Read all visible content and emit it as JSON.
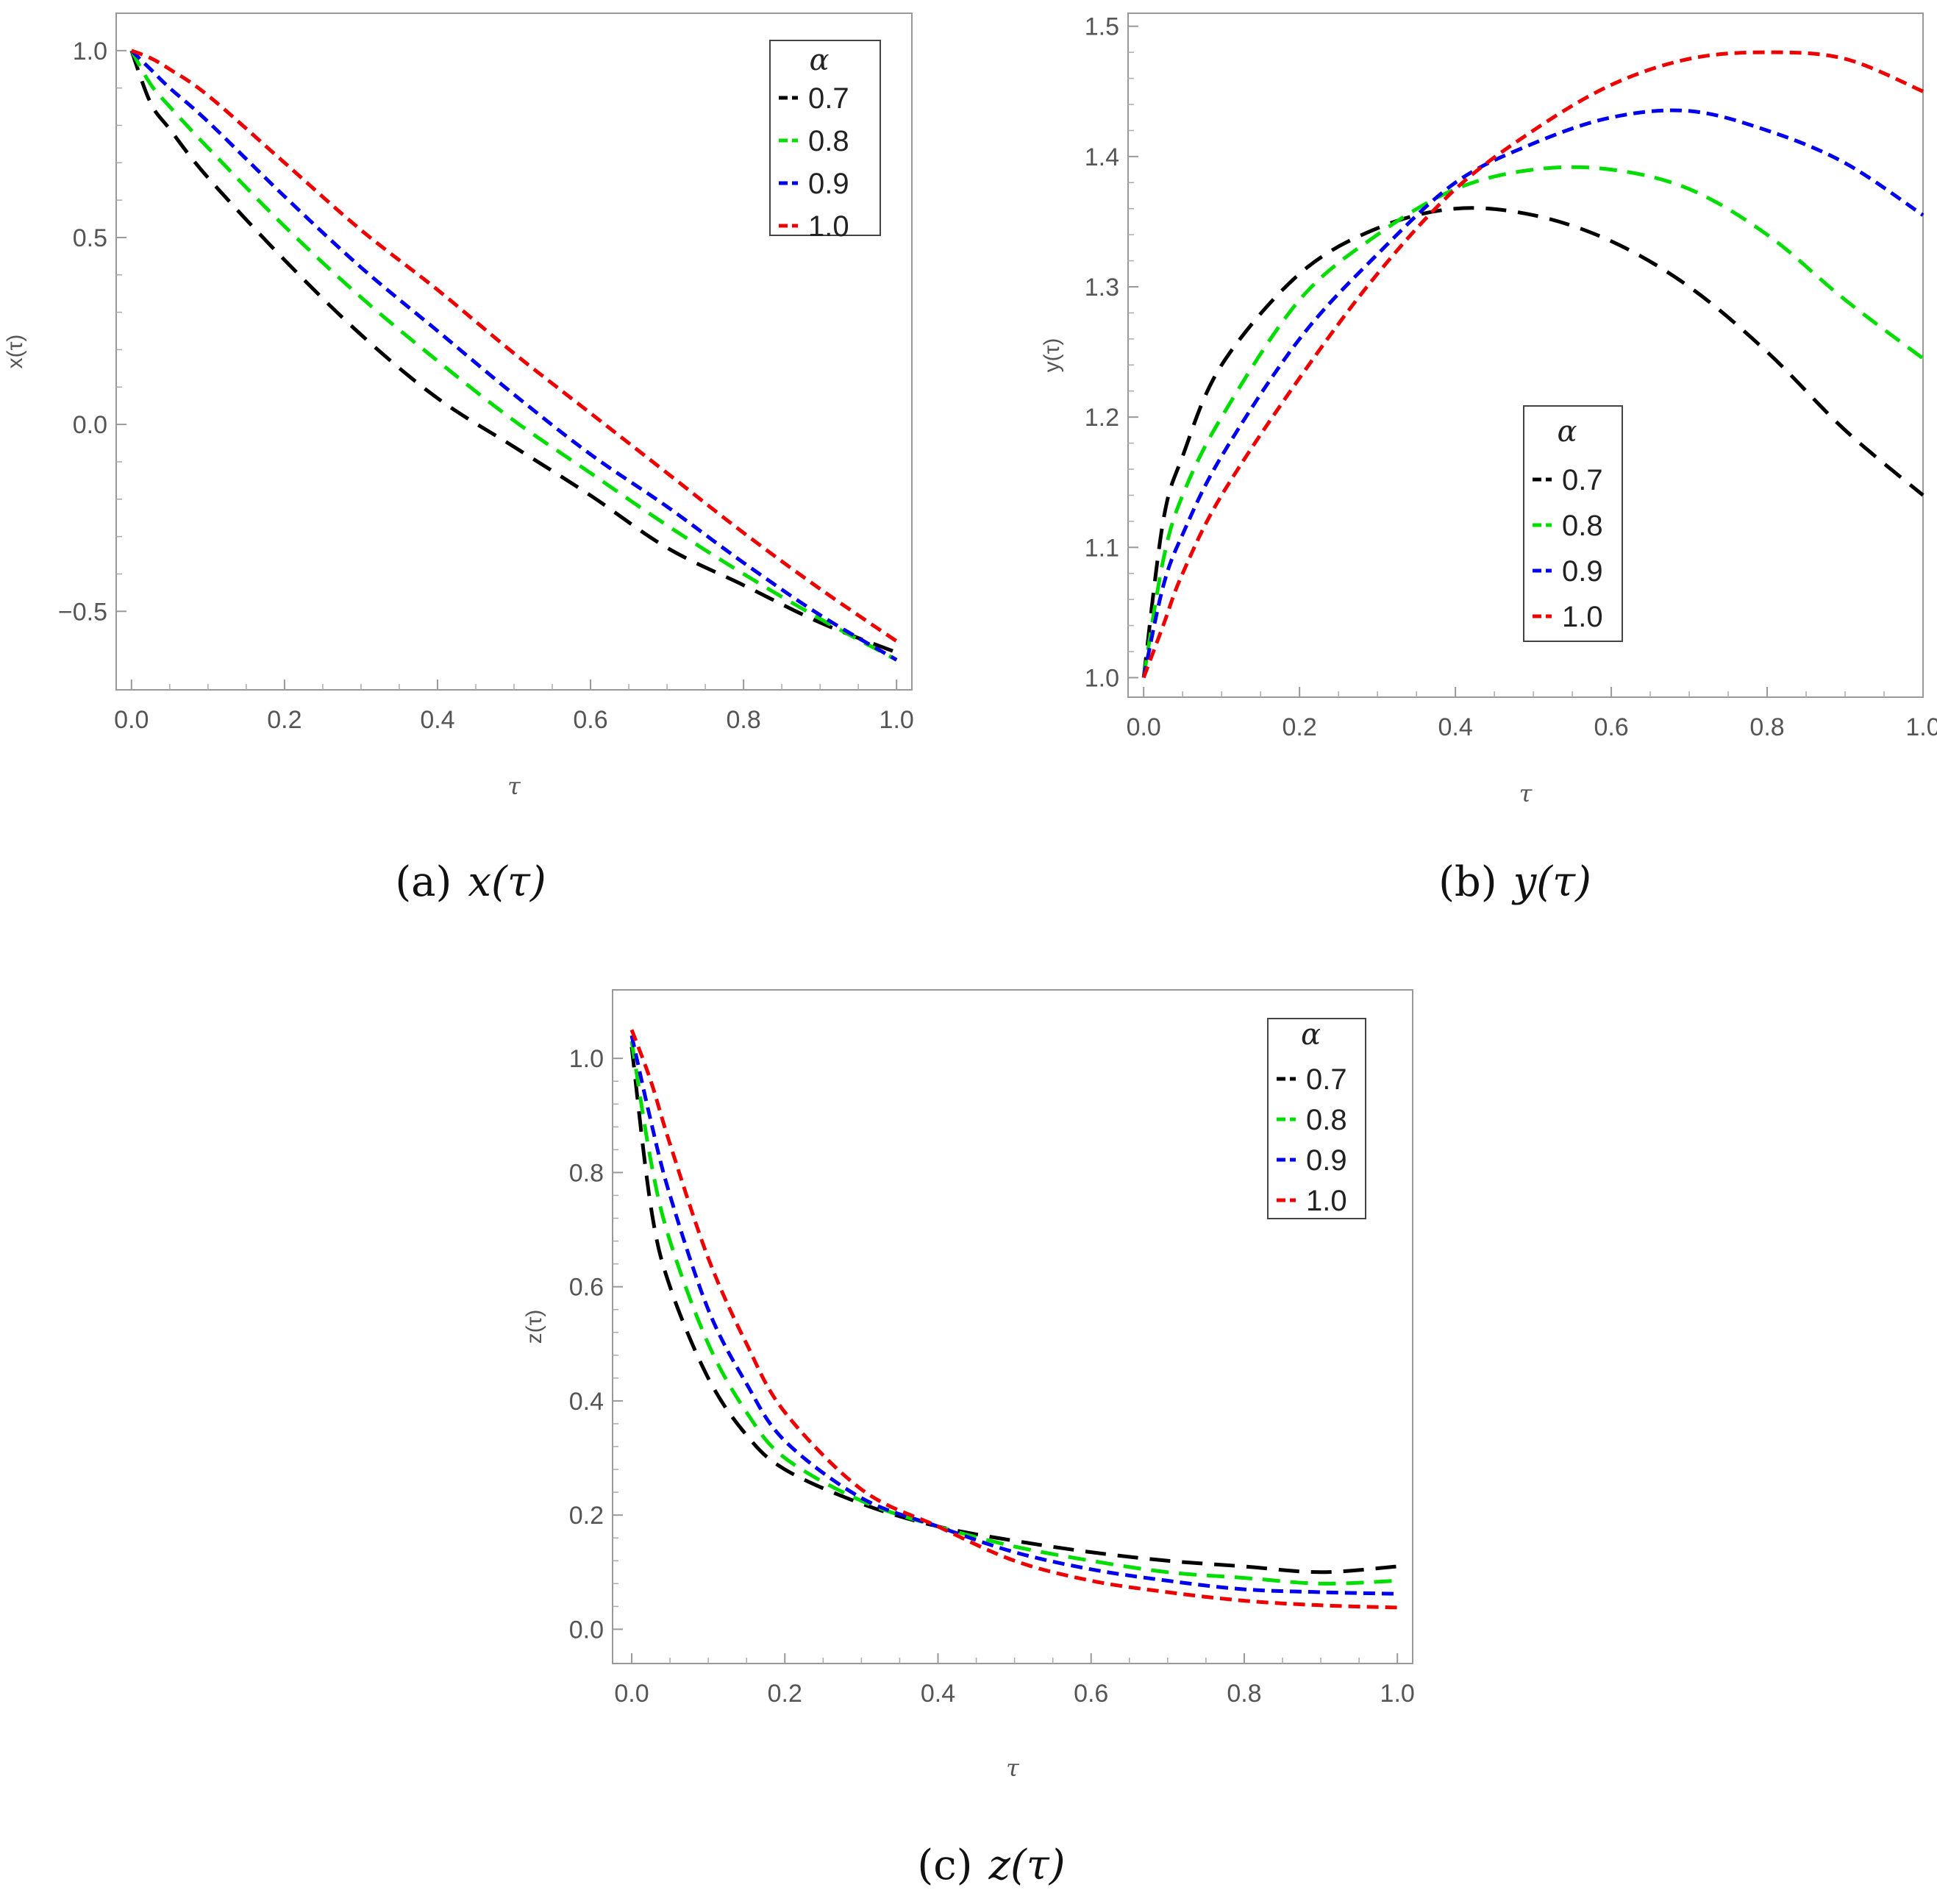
{
  "chart_data": [
    {
      "id": "a",
      "type": "line",
      "caption_label": "(a)",
      "caption_math": "x(τ)",
      "xlabel": "τ",
      "ylabel": "x(τ)",
      "xlim": [
        -0.02,
        1.02
      ],
      "ylim": [
        -0.71,
        1.1
      ],
      "xticks": [
        0.0,
        0.2,
        0.4,
        0.6,
        0.8,
        1.0
      ],
      "xtick_labels": [
        "0.0",
        "0.2",
        "0.4",
        "0.6",
        "0.8",
        "1.0"
      ],
      "yticks": [
        -0.5,
        0.0,
        0.5,
        1.0
      ],
      "ytick_labels": [
        "−0.5",
        "0.0",
        "0.5",
        "1.0"
      ],
      "legend": {
        "title": "α",
        "position": "top-right"
      },
      "x": [
        0,
        0.025,
        0.05,
        0.1,
        0.2,
        0.3,
        0.4,
        0.5,
        0.6,
        0.7,
        0.8,
        0.9,
        1.0
      ],
      "series": [
        {
          "name": "0.7",
          "color": "#000000",
          "values": [
            1.0,
            0.86,
            0.79,
            0.66,
            0.44,
            0.24,
            0.07,
            -0.06,
            -0.19,
            -0.33,
            -0.43,
            -0.53,
            -0.61
          ]
        },
        {
          "name": "0.8",
          "color": "#00dd00",
          "values": [
            1.0,
            0.91,
            0.85,
            0.74,
            0.53,
            0.34,
            0.17,
            0.01,
            -0.13,
            -0.27,
            -0.4,
            -0.52,
            -0.63
          ]
        },
        {
          "name": "0.9",
          "color": "#0000ee",
          "values": [
            1.0,
            0.95,
            0.9,
            0.81,
            0.61,
            0.42,
            0.25,
            0.08,
            -0.08,
            -0.22,
            -0.37,
            -0.51,
            -0.63
          ]
        },
        {
          "name": "1.0",
          "color": "#ee0000",
          "values": [
            1.0,
            0.98,
            0.95,
            0.88,
            0.7,
            0.52,
            0.36,
            0.19,
            0.03,
            -0.13,
            -0.29,
            -0.44,
            -0.58
          ]
        }
      ]
    },
    {
      "id": "b",
      "type": "line",
      "caption_label": "(b)",
      "caption_math": "y(τ)",
      "xlabel": "τ",
      "ylabel": "y(τ)",
      "xlim": [
        -0.02,
        1.0
      ],
      "ylim": [
        0.985,
        1.51
      ],
      "xticks": [
        0.0,
        0.2,
        0.4,
        0.6,
        0.8,
        1.0
      ],
      "xtick_labels": [
        "0.0",
        "0.2",
        "0.4",
        "0.6",
        "0.8",
        "1.0"
      ],
      "yticks": [
        1.0,
        1.1,
        1.2,
        1.3,
        1.4,
        1.5
      ],
      "ytick_labels": [
        "1.0",
        "1.1",
        "1.2",
        "1.3",
        "1.4",
        "1.5"
      ],
      "legend": {
        "title": "α",
        "position": "center-right"
      },
      "x": [
        0,
        0.025,
        0.05,
        0.1,
        0.2,
        0.3,
        0.4,
        0.5,
        0.6,
        0.7,
        0.8,
        0.9,
        1.0
      ],
      "series": [
        {
          "name": "0.7",
          "color": "#000000",
          "values": [
            1.0,
            1.12,
            1.17,
            1.24,
            1.31,
            1.345,
            1.36,
            1.355,
            1.335,
            1.3,
            1.25,
            1.19,
            1.14
          ]
        },
        {
          "name": "0.8",
          "color": "#00dd00",
          "values": [
            1.0,
            1.09,
            1.14,
            1.2,
            1.29,
            1.34,
            1.375,
            1.39,
            1.39,
            1.375,
            1.34,
            1.29,
            1.245
          ]
        },
        {
          "name": "0.9",
          "color": "#0000ee",
          "values": [
            1.0,
            1.07,
            1.11,
            1.17,
            1.26,
            1.325,
            1.38,
            1.41,
            1.43,
            1.435,
            1.42,
            1.395,
            1.355
          ]
        },
        {
          "name": "1.0",
          "color": "#ee0000",
          "values": [
            1.0,
            1.04,
            1.08,
            1.14,
            1.23,
            1.31,
            1.375,
            1.42,
            1.455,
            1.475,
            1.48,
            1.475,
            1.45
          ]
        }
      ]
    },
    {
      "id": "c",
      "type": "line",
      "caption_label": "(c)",
      "caption_math": "z(τ)",
      "xlabel": "τ",
      "ylabel": "z(τ)",
      "xlim": [
        -0.025,
        1.02
      ],
      "ylim": [
        -0.06,
        1.12
      ],
      "xticks": [
        0.0,
        0.2,
        0.4,
        0.6,
        0.8,
        1.0
      ],
      "xtick_labels": [
        "0.0",
        "0.2",
        "0.4",
        "0.6",
        "0.8",
        "1.0"
      ],
      "yticks": [
        0.0,
        0.2,
        0.4,
        0.6,
        0.8,
        1.0
      ],
      "ytick_labels": [
        "0.0",
        "0.2",
        "0.4",
        "0.6",
        "0.8",
        "1.0"
      ],
      "legend": {
        "title": "α",
        "position": "top-right"
      },
      "x": [
        0,
        0.025,
        0.05,
        0.1,
        0.15,
        0.2,
        0.3,
        0.4,
        0.5,
        0.6,
        0.7,
        0.8,
        0.9,
        1.0
      ],
      "series": [
        {
          "name": "0.7",
          "color": "#000000",
          "values": [
            1.02,
            0.74,
            0.6,
            0.44,
            0.34,
            0.28,
            0.22,
            0.18,
            0.155,
            0.135,
            0.12,
            0.11,
            0.1,
            0.11
          ]
        },
        {
          "name": "0.8",
          "color": "#00dd00",
          "values": [
            1.03,
            0.82,
            0.68,
            0.5,
            0.38,
            0.3,
            0.225,
            0.18,
            0.145,
            0.12,
            0.1,
            0.09,
            0.08,
            0.085
          ]
        },
        {
          "name": "0.9",
          "color": "#0000ee",
          "values": [
            1.04,
            0.89,
            0.76,
            0.56,
            0.43,
            0.33,
            0.23,
            0.18,
            0.135,
            0.105,
            0.085,
            0.07,
            0.065,
            0.062
          ]
        },
        {
          "name": "1.0",
          "color": "#ee0000",
          "values": [
            1.05,
            0.96,
            0.85,
            0.65,
            0.5,
            0.38,
            0.245,
            0.18,
            0.12,
            0.085,
            0.065,
            0.05,
            0.042,
            0.038
          ]
        }
      ]
    }
  ]
}
